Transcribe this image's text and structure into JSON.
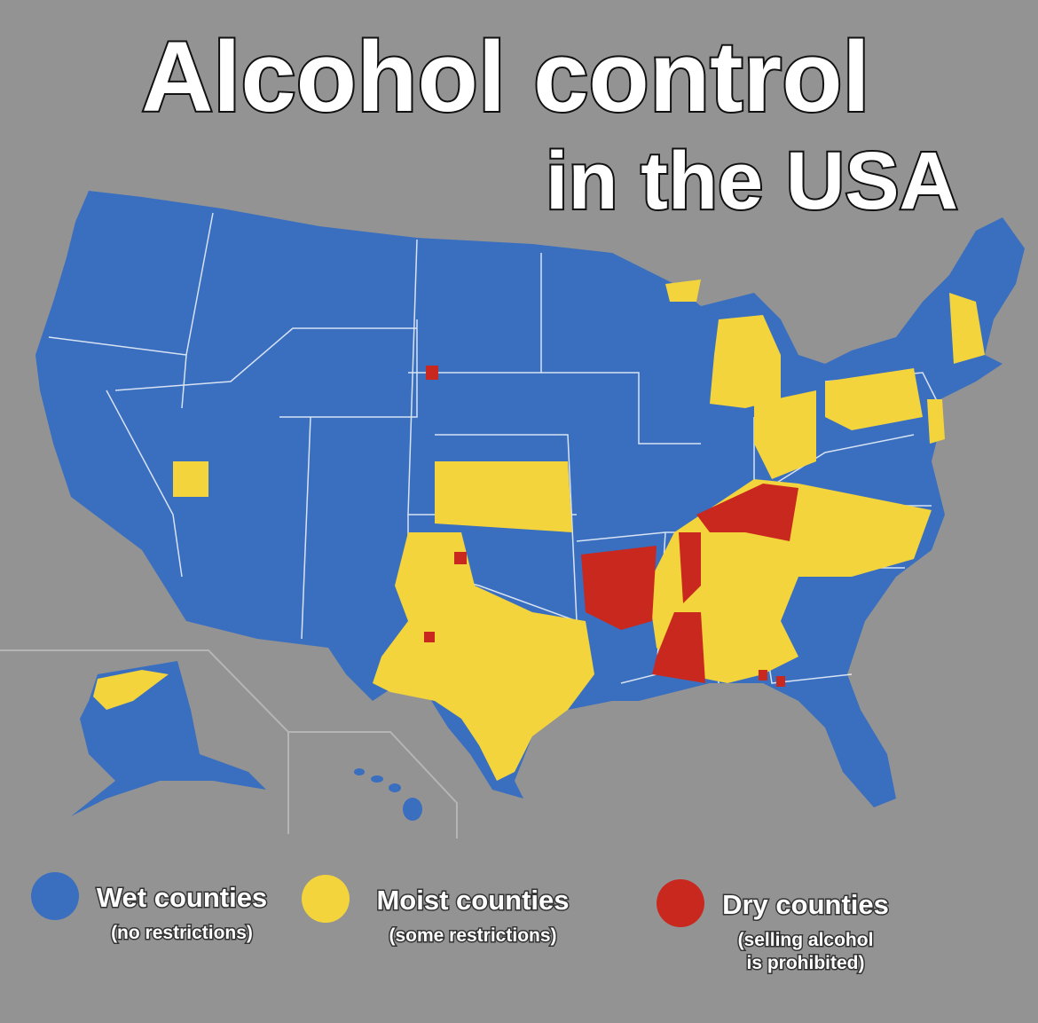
{
  "title": {
    "line1": "Alcohol control",
    "line2": "in the USA"
  },
  "legend": [
    {
      "label": "Wet counties",
      "note": [
        "(no restrictions)"
      ],
      "color": "#3a6fc0"
    },
    {
      "label": "Moist counties",
      "note": [
        "(some restrictions)"
      ],
      "color": "#f3d43c"
    },
    {
      "label": "Dry counties",
      "note": [
        "(selling alcohol",
        "is prohibited)"
      ],
      "color": "#c8281e"
    }
  ]
}
